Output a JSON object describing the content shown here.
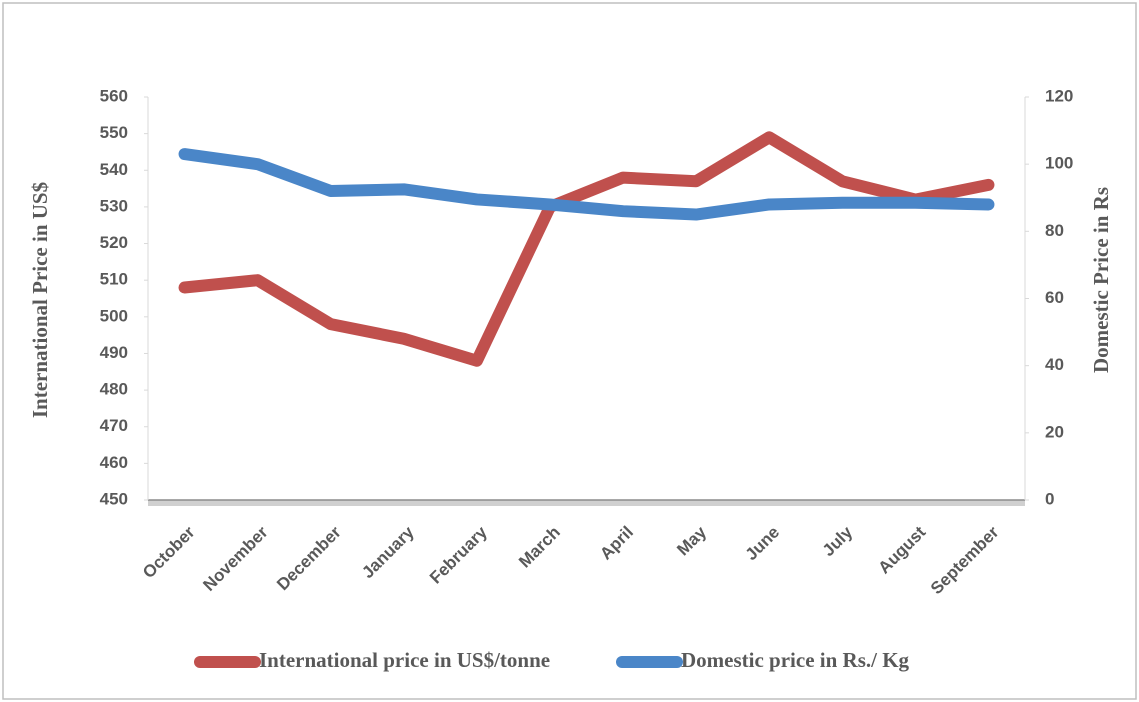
{
  "chart_data": {
    "type": "line",
    "categories": [
      "October",
      "November",
      "December",
      "January",
      "February",
      "March",
      "April",
      "May",
      "June",
      "July",
      "August",
      "September"
    ],
    "series": [
      {
        "name": "International price in US$/tonne",
        "color": "#c0504d",
        "axis": "y",
        "values": [
          508,
          510,
          498,
          494,
          488,
          530,
          538,
          537,
          549,
          537,
          532,
          536
        ]
      },
      {
        "name": "Domestic price in Rs./ Kg",
        "color": "#4a86c8",
        "axis": "y2",
        "values": [
          103,
          100,
          92,
          92.5,
          89.5,
          88,
          86,
          85,
          88,
          88.5,
          88.5,
          88
        ]
      }
    ],
    "ylabel": "International Price in US$",
    "y2label": "Domestic Price in Rs",
    "ylim": [
      450,
      560
    ],
    "yticks": [
      450,
      460,
      470,
      480,
      490,
      500,
      510,
      520,
      530,
      540,
      550,
      560
    ],
    "y2lim": [
      0,
      120
    ],
    "y2ticks": [
      0,
      20,
      40,
      60,
      80,
      100,
      120
    ],
    "legend": "bottom"
  }
}
